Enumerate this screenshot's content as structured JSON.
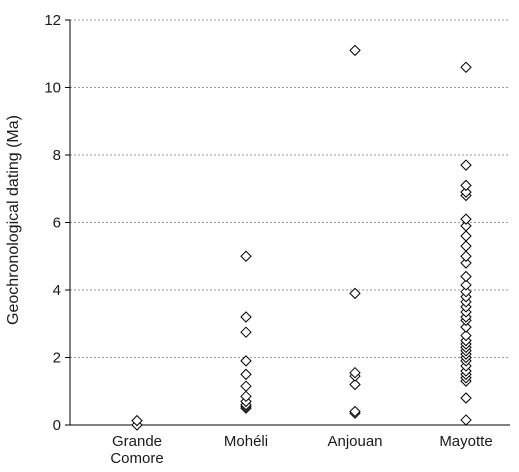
{
  "chart_data": {
    "type": "scatter",
    "title": "",
    "xlabel": "",
    "ylabel": "Geochronological dating (Ma)",
    "ylim": [
      0,
      12
    ],
    "yticks": [
      0,
      2,
      4,
      6,
      8,
      10,
      12
    ],
    "grid": "horizontal-dashed",
    "marker": "open-diamond",
    "categories": [
      {
        "label_lines": [
          "Grande",
          "Comore"
        ],
        "values": [
          0.0,
          0.13
        ]
      },
      {
        "label_lines": [
          "Mohéli"
        ],
        "values": [
          0.5,
          0.55,
          0.6,
          0.7,
          0.85,
          1.15,
          1.5,
          1.9,
          2.75,
          3.2,
          5.0
        ]
      },
      {
        "label_lines": [
          "Anjouan"
        ],
        "values": [
          0.35,
          0.4,
          1.2,
          1.45,
          1.55,
          3.9,
          11.1
        ]
      },
      {
        "label_lines": [
          "Mayotte"
        ],
        "values": [
          0.15,
          0.8,
          1.3,
          1.4,
          1.5,
          1.6,
          1.75,
          1.9,
          2.0,
          2.1,
          2.2,
          2.3,
          2.4,
          2.5,
          2.65,
          2.9,
          3.1,
          3.2,
          3.35,
          3.5,
          3.65,
          3.8,
          3.95,
          4.15,
          4.4,
          4.8,
          5.0,
          5.3,
          5.6,
          5.9,
          6.1,
          6.8,
          6.9,
          7.1,
          7.7,
          10.6
        ]
      }
    ]
  }
}
